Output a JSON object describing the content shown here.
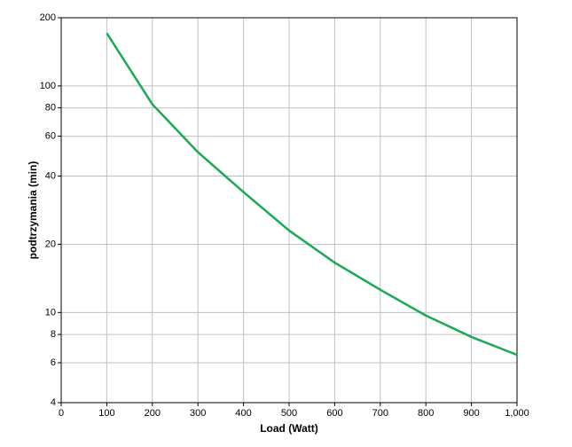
{
  "chart_data": {
    "type": "line",
    "x_label": "Load (Watt)",
    "y_label": "podtrzymania (min)",
    "x": [
      100,
      200,
      300,
      400,
      500,
      600,
      700,
      800,
      900,
      1000
    ],
    "series": [
      {
        "color": "#1aaa55",
        "values": [
          171,
          83,
          51,
          34,
          23,
          16.6,
          12.6,
          9.7,
          7.8,
          6.5
        ]
      }
    ],
    "xlim": [
      0,
      1000
    ],
    "xticks": [
      0,
      100,
      200,
      300,
      400,
      500,
      600,
      700,
      800,
      900,
      {
        "value": 1000,
        "label": "1,000"
      }
    ],
    "ylim": [
      4,
      200
    ],
    "yticks": [
      4,
      6,
      8,
      10,
      20,
      40,
      60,
      80,
      100,
      200
    ],
    "y_scale": "log",
    "grid": true
  }
}
